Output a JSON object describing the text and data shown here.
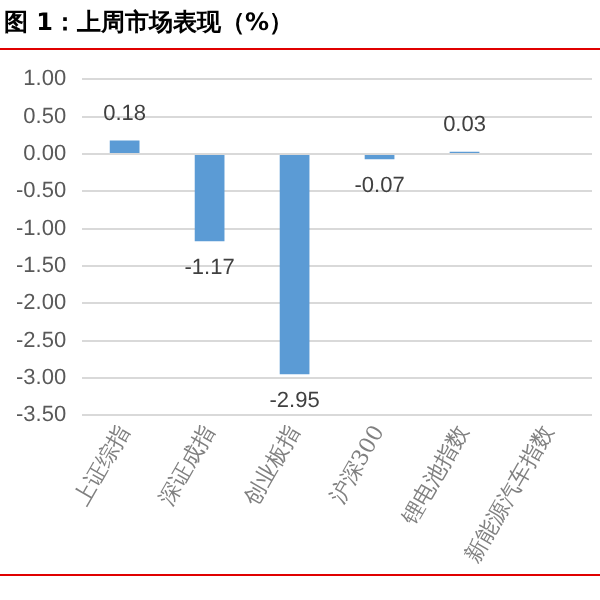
{
  "chart_data": {
    "type": "bar",
    "title": "图 1：上周市场表现（%）",
    "categories": [
      "上证综指",
      "深证成指",
      "创业板指",
      "沪深300",
      "锂电池指数",
      "新能源汽车指数"
    ],
    "values": [
      0.18,
      -1.17,
      -2.95,
      -0.07,
      0.03,
      null
    ],
    "value_labels": [
      "0.18",
      "-1.17",
      "-2.95",
      "-0.07",
      "0.03",
      null
    ],
    "color": "#5b9bd5",
    "ylim": [
      -3.5,
      1
    ],
    "yticks": [
      {
        "value": -3.5,
        "label": "-3.50"
      },
      {
        "value": -3,
        "label": "-3.00"
      },
      {
        "value": -2.5,
        "label": "-2.50"
      },
      {
        "value": -2,
        "label": "-2.00"
      },
      {
        "value": -1.5,
        "label": "-1.50"
      },
      {
        "value": -1,
        "label": "-1.00"
      },
      {
        "value": -0.5,
        "label": "-0.50"
      },
      {
        "value": 0,
        "label": "0.00"
      },
      {
        "value": 0.5,
        "label": "0.50"
      },
      {
        "value": 1,
        "label": "1.00"
      }
    ],
    "grid": "y"
  }
}
